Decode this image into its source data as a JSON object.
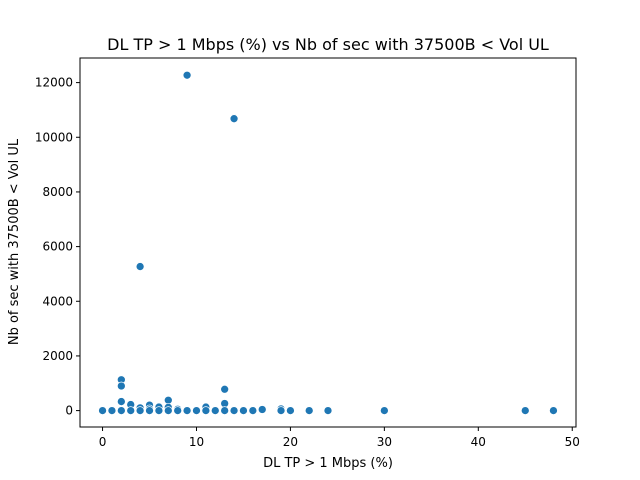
{
  "chart_data": {
    "type": "scatter",
    "title": "DL TP > 1 Mbps (%) vs Nb of sec with 37500B < Vol UL",
    "xlabel": "DL TP > 1 Mbps (%)",
    "ylabel": "Nb of sec with 37500B < Vol UL",
    "xlim": [
      -2.4,
      50.4
    ],
    "ylim": [
      -600,
      12900
    ],
    "xticks": [
      0,
      10,
      20,
      30,
      40,
      50
    ],
    "yticks": [
      0,
      2000,
      4000,
      6000,
      8000,
      10000,
      12000
    ],
    "grid": false,
    "marker_color": "#1f77b4",
    "points": [
      {
        "x": 0,
        "y": 0
      },
      {
        "x": 1,
        "y": 0
      },
      {
        "x": 2,
        "y": 0
      },
      {
        "x": 2,
        "y": 1130
      },
      {
        "x": 2,
        "y": 900
      },
      {
        "x": 2,
        "y": 330
      },
      {
        "x": 3,
        "y": 220
      },
      {
        "x": 3,
        "y": 0
      },
      {
        "x": 4,
        "y": 5270
      },
      {
        "x": 4,
        "y": 100
      },
      {
        "x": 4,
        "y": 0
      },
      {
        "x": 5,
        "y": 200
      },
      {
        "x": 5,
        "y": 60
      },
      {
        "x": 5,
        "y": 0
      },
      {
        "x": 6,
        "y": 130
      },
      {
        "x": 6,
        "y": 0
      },
      {
        "x": 7,
        "y": 380
      },
      {
        "x": 7,
        "y": 120
      },
      {
        "x": 7,
        "y": 0
      },
      {
        "x": 8,
        "y": 50
      },
      {
        "x": 8,
        "y": 0
      },
      {
        "x": 9,
        "y": 12270
      },
      {
        "x": 9,
        "y": 0
      },
      {
        "x": 10,
        "y": 0
      },
      {
        "x": 11,
        "y": 130
      },
      {
        "x": 11,
        "y": 0
      },
      {
        "x": 12,
        "y": 0
      },
      {
        "x": 13,
        "y": 780
      },
      {
        "x": 13,
        "y": 260
      },
      {
        "x": 13,
        "y": 0
      },
      {
        "x": 14,
        "y": 10680
      },
      {
        "x": 14,
        "y": 0
      },
      {
        "x": 15,
        "y": 0
      },
      {
        "x": 16,
        "y": 0
      },
      {
        "x": 17,
        "y": 40
      },
      {
        "x": 19,
        "y": 60
      },
      {
        "x": 19,
        "y": 0
      },
      {
        "x": 20,
        "y": 0
      },
      {
        "x": 22,
        "y": 0
      },
      {
        "x": 24,
        "y": 0
      },
      {
        "x": 30,
        "y": 0
      },
      {
        "x": 45,
        "y": 0
      },
      {
        "x": 48,
        "y": 0
      }
    ]
  }
}
